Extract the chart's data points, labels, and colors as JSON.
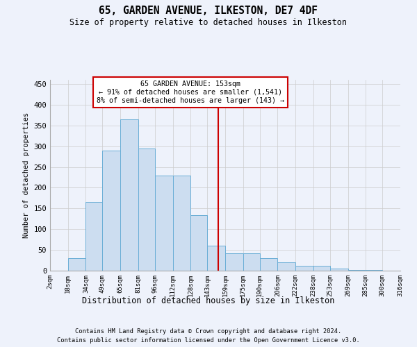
{
  "title": "65, GARDEN AVENUE, ILKESTON, DE7 4DF",
  "subtitle": "Size of property relative to detached houses in Ilkeston",
  "xlabel": "Distribution of detached houses by size in Ilkeston",
  "ylabel": "Number of detached properties",
  "footnote1": "Contains HM Land Registry data © Crown copyright and database right 2024.",
  "footnote2": "Contains public sector information licensed under the Open Government Licence v3.0.",
  "annotation_title": "65 GARDEN AVENUE: 153sqm",
  "annotation_line1": "← 91% of detached houses are smaller (1,541)",
  "annotation_line2": "8% of semi-detached houses are larger (143) →",
  "property_size": 153,
  "bin_edges": [
    2,
    18,
    34,
    49,
    65,
    81,
    96,
    112,
    128,
    143,
    159,
    175,
    190,
    206,
    222,
    238,
    253,
    269,
    285,
    300,
    316
  ],
  "bar_heights": [
    0,
    30,
    165,
    290,
    365,
    295,
    230,
    230,
    133,
    60,
    42,
    42,
    30,
    20,
    11,
    11,
    5,
    2,
    2,
    0
  ],
  "bar_color": "#ccddf0",
  "bar_edge_color": "#6aaed6",
  "vline_color": "#cc0000",
  "annotation_box_color": "#cc0000",
  "grid_color": "#cccccc",
  "background_color": "#eef2fb",
  "ylim": [
    0,
    460
  ],
  "yticks": [
    0,
    50,
    100,
    150,
    200,
    250,
    300,
    350,
    400,
    450
  ]
}
